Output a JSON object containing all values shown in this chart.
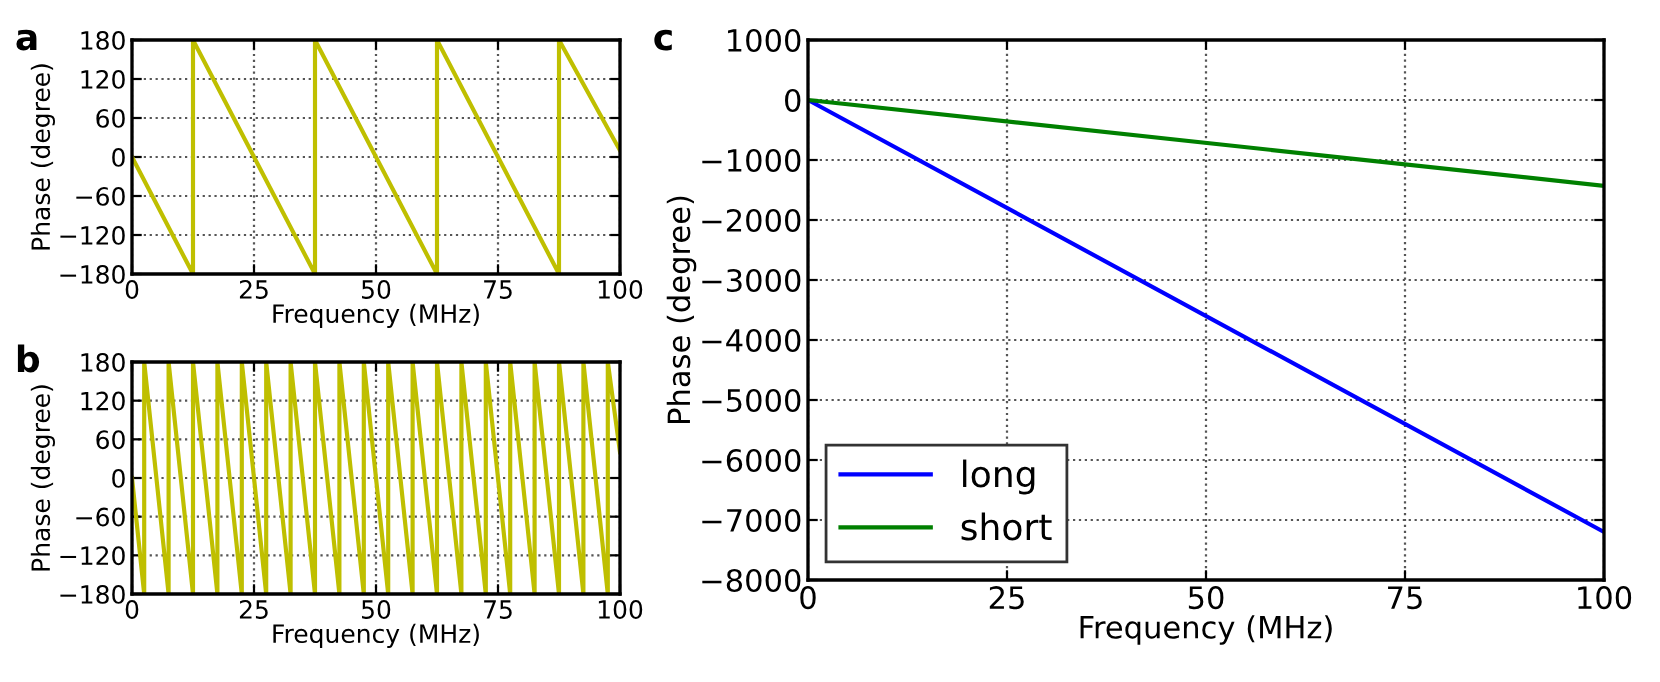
{
  "chart_data": [
    {
      "type": "line",
      "annotations": [
        "a"
      ],
      "xlabel": "Frequency (MHz)",
      "ylabel": "Phase (degree)",
      "xlim": [
        0,
        100
      ],
      "ylim": [
        -180,
        180
      ],
      "xticks": [
        0,
        25,
        50,
        75,
        100
      ],
      "yticks": [
        -180,
        -120,
        -60,
        0,
        60,
        120,
        180
      ],
      "grid": true,
      "legend": false,
      "series": [
        {
          "color": "#bfbf00",
          "x": [
            0,
            12.5,
            12.5,
            37.5,
            37.5,
            62.5,
            62.5,
            87.5,
            87.5,
            100
          ],
          "values": [
            0,
            -180,
            180,
            -180,
            180,
            -180,
            180,
            -180,
            180,
            10
          ]
        }
      ]
    },
    {
      "type": "line",
      "annotations": [
        "b"
      ],
      "xlabel": "Frequency (MHz)",
      "ylabel": "Phase (degree)",
      "xlim": [
        0,
        100
      ],
      "ylim": [
        -180,
        180
      ],
      "xticks": [
        0,
        25,
        50,
        75,
        100
      ],
      "yticks": [
        -180,
        -120,
        -60,
        0,
        60,
        120,
        180
      ],
      "grid": true,
      "legend": false,
      "series": [
        {
          "color": "#bfbf00",
          "x": [
            0,
            2.5,
            2.5,
            7.5,
            7.5,
            12.5,
            12.5,
            17.5,
            17.5,
            22.5,
            22.5,
            27.5,
            27.5,
            32.5,
            32.5,
            37.5,
            37.5,
            42.5,
            42.5,
            47.5,
            47.5,
            52.5,
            52.5,
            57.5,
            57.5,
            62.5,
            62.5,
            67.5,
            67.5,
            72.5,
            72.5,
            77.5,
            77.5,
            82.5,
            82.5,
            87.5,
            87.5,
            92.5,
            92.5,
            97.5,
            97.5,
            100
          ],
          "values": [
            0,
            -180,
            180,
            -180,
            180,
            -180,
            180,
            -180,
            180,
            -180,
            180,
            -180,
            180,
            -180,
            180,
            -180,
            180,
            -180,
            180,
            -180,
            180,
            -180,
            180,
            -180,
            180,
            -180,
            180,
            -180,
            180,
            -180,
            180,
            -180,
            180,
            -180,
            180,
            -180,
            180,
            -180,
            180,
            -180,
            180,
            40
          ]
        }
      ]
    },
    {
      "type": "line",
      "annotations": [
        "c"
      ],
      "xlabel": "Frequency (MHz)",
      "ylabel": "Phase (degree)",
      "xlim": [
        0,
        100
      ],
      "ylim": [
        -8000,
        1000
      ],
      "xticks": [
        0,
        25,
        50,
        75,
        100
      ],
      "yticks": [
        -8000,
        -7000,
        -6000,
        -5000,
        -4000,
        -3000,
        -2000,
        -1000,
        0,
        1000
      ],
      "grid": true,
      "legend": "bottom left",
      "series": [
        {
          "name": "long",
          "color": "#0000ff",
          "x": [
            0,
            100
          ],
          "values": [
            0,
            -7200
          ]
        },
        {
          "name": "short",
          "color": "#008000",
          "x": [
            0,
            100
          ],
          "values": [
            0,
            -1430
          ]
        }
      ]
    }
  ]
}
